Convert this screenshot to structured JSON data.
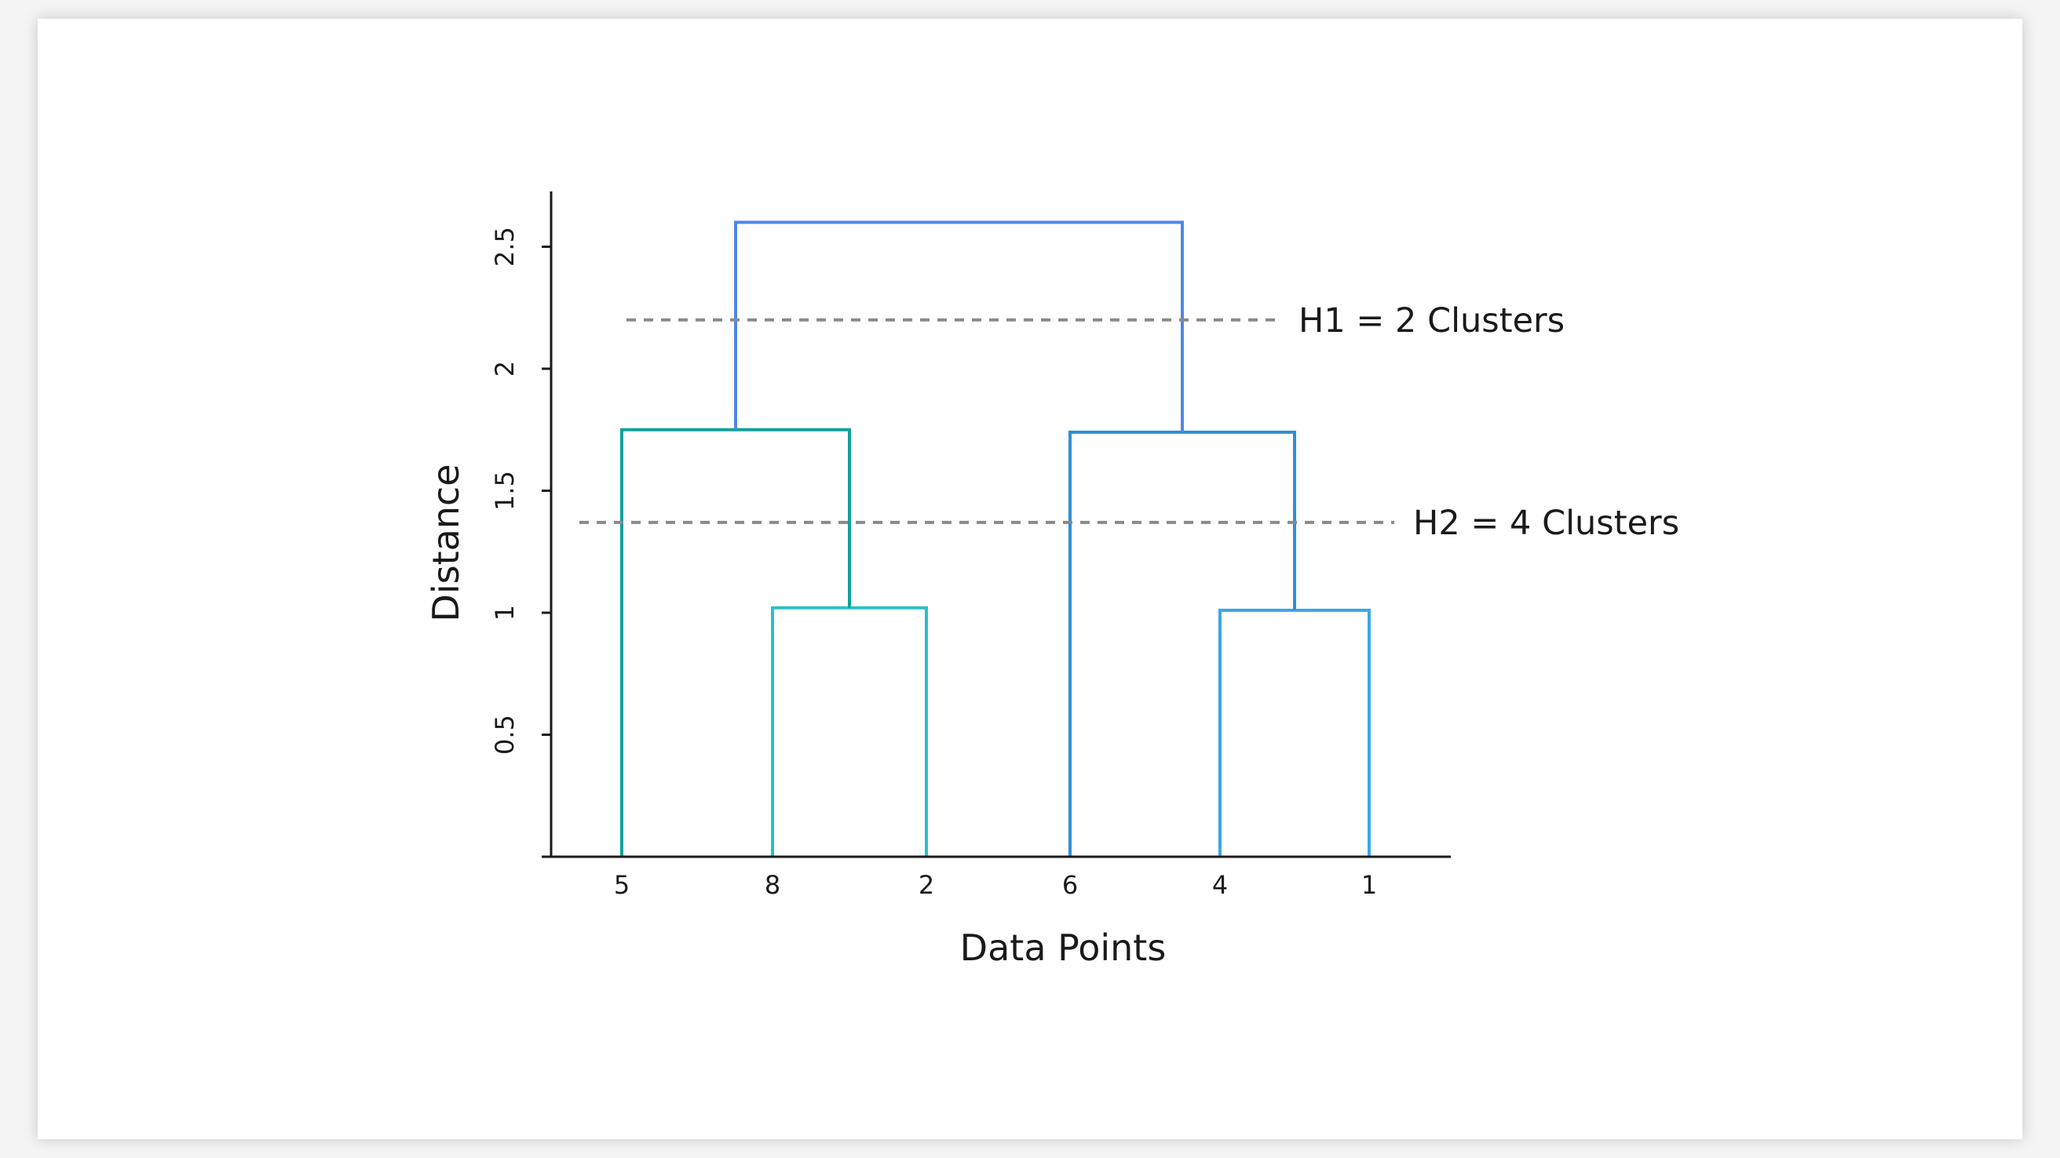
{
  "chart_data": {
    "type": "dendrogram",
    "xlabel": "Data Points",
    "ylabel": "Distance",
    "leaves": [
      "5",
      "8",
      "2",
      "6",
      "4",
      "1"
    ],
    "y_ticks": [
      0.5,
      1,
      1.5,
      2,
      2.5
    ],
    "y_tick_labels": [
      "0.5",
      "1",
      "1.5",
      "2",
      "2.5"
    ],
    "ylim": [
      0,
      2.65
    ],
    "merges": [
      {
        "left": "8",
        "right": "2",
        "height": 1.02,
        "color": "#2bbfc9"
      },
      {
        "left": "4",
        "right": "1",
        "height": 1.01,
        "color": "#3aa6e6"
      },
      {
        "left": "5",
        "right": "(8,2)",
        "height": 1.75,
        "color": "#12a19a"
      },
      {
        "left": "6",
        "right": "(4,1)",
        "height": 1.74,
        "color": "#2f8fd4"
      },
      {
        "left": "(5,8,2)",
        "right": "(6,4,1)",
        "height": 2.6,
        "color": "#4f87e8"
      }
    ],
    "cut_lines": [
      {
        "label": "H1 = 2 Clusters",
        "height": 2.2
      },
      {
        "label": "H2 = 4 Clusters",
        "height": 1.37
      }
    ],
    "colors": {
      "axis": "#1a1a1a",
      "cut_line": "#8a8a8a"
    }
  }
}
